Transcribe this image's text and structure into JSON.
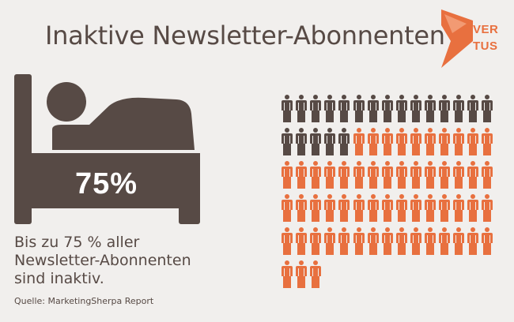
{
  "title": "Inaktive Newsletter-Abonnenten",
  "logo": {
    "line1": "VER",
    "line2": "TUS",
    "icon": "vertus-chevron-logo"
  },
  "colors": {
    "dark": "#574a45",
    "accent": "#e8703f",
    "background": "#f1efed"
  },
  "stat": {
    "percent": "75%",
    "inactive_share": 0.75
  },
  "description": [
    "Bis zu 75 % aller",
    "Newsletter-Abonnenten",
    "sind inaktiv."
  ],
  "source": "Quelle: MarketingSherpa Report",
  "pictogram": {
    "total": 78,
    "active": 20,
    "inactive": 58,
    "per_row": 15
  }
}
